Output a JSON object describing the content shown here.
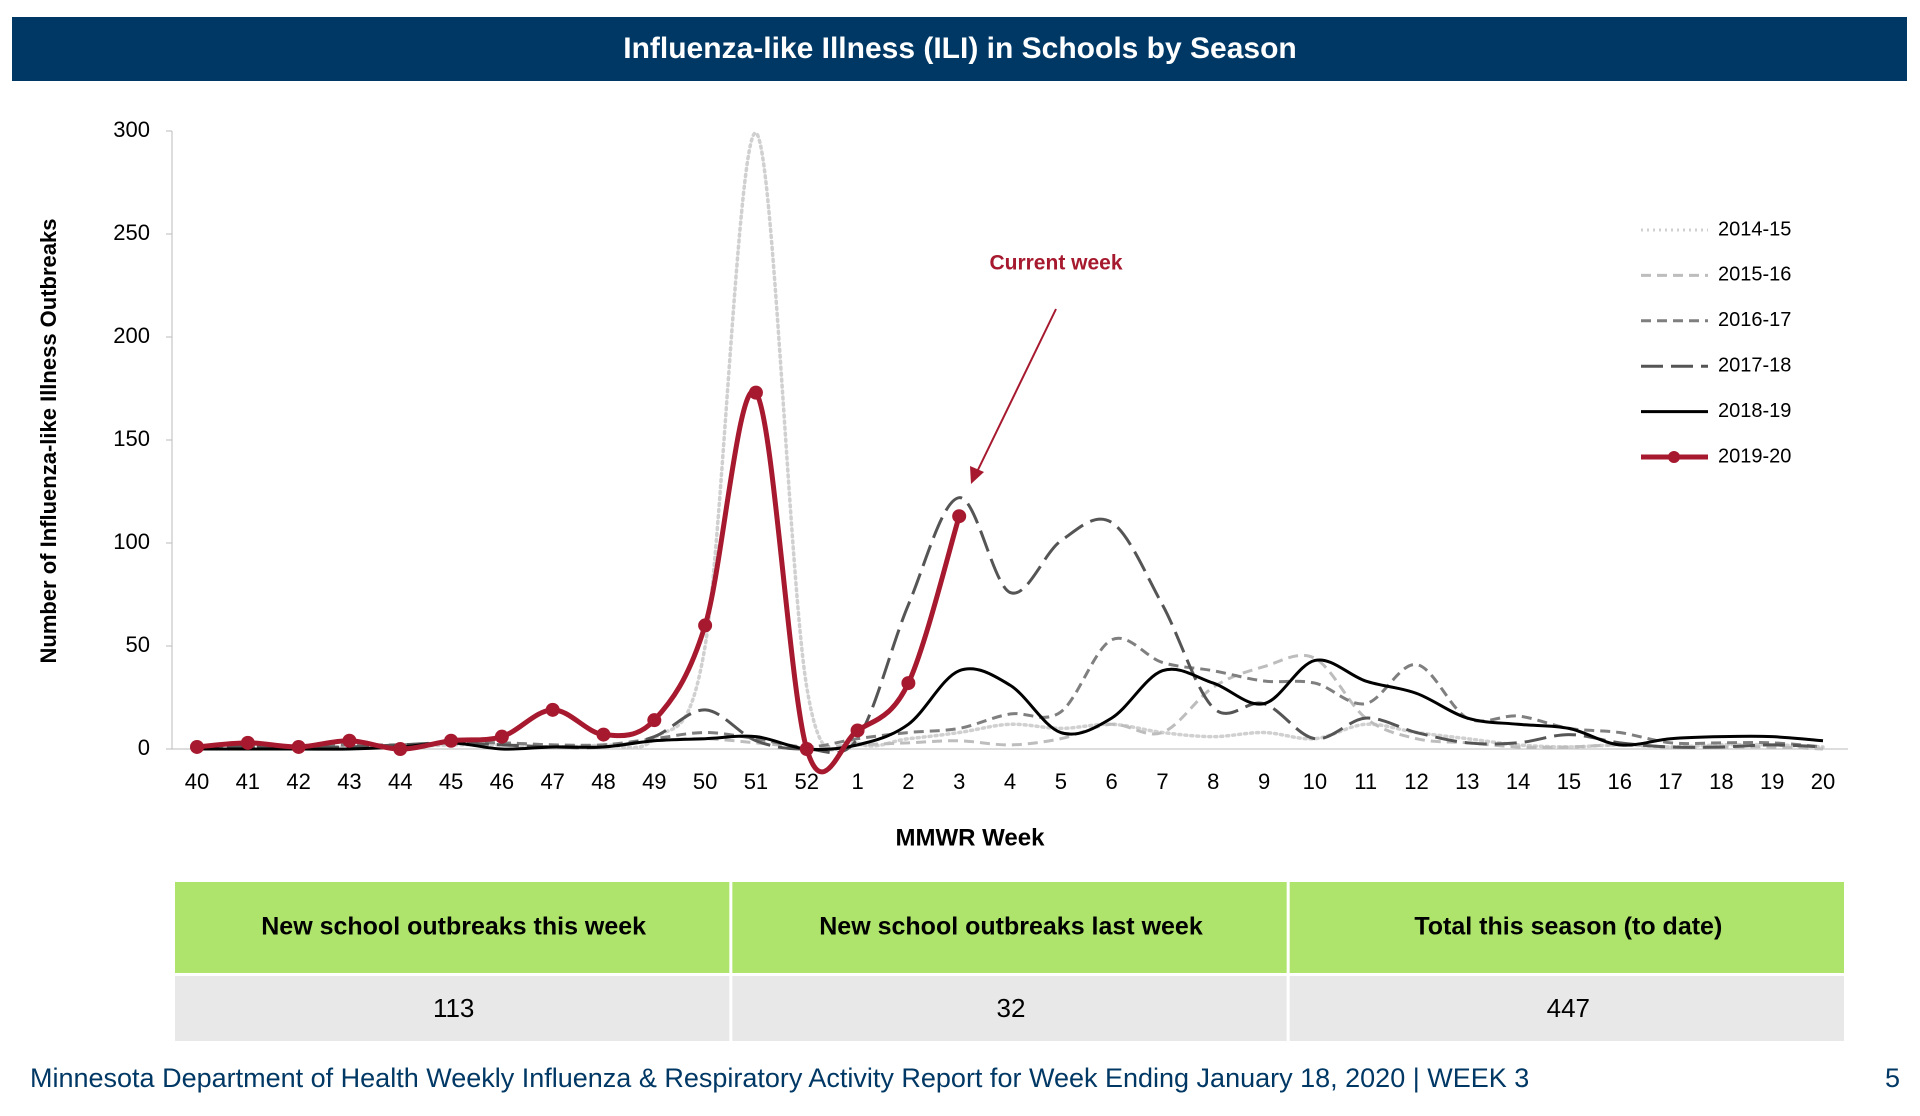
{
  "chart_data": {
    "type": "line",
    "title": "Influenza-like Illness (ILI) in Schools by Season",
    "x_label": "MMWR Week",
    "y_label": "Number of Influenza-like Illness Outbreaks",
    "annotation": "Current week",
    "categories": [
      "40",
      "41",
      "42",
      "43",
      "44",
      "45",
      "46",
      "47",
      "48",
      "49",
      "50",
      "51",
      "52",
      "1",
      "2",
      "3",
      "4",
      "5",
      "6",
      "7",
      "8",
      "9",
      "10",
      "11",
      "12",
      "13",
      "14",
      "15",
      "16",
      "17",
      "18",
      "19",
      "20"
    ],
    "ylim": [
      0,
      300
    ],
    "yticks": [
      0,
      50,
      100,
      150,
      200,
      250,
      300
    ],
    "legend": "right",
    "series": [
      {
        "name": "2014-15",
        "color": "#d0d0d0",
        "dash": "dotted",
        "values": [
          1,
          2,
          1,
          1,
          1,
          2,
          2,
          1,
          2,
          5,
          50,
          299,
          30,
          3,
          5,
          8,
          12,
          10,
          12,
          8,
          6,
          8,
          5,
          12,
          8,
          5,
          2,
          1,
          2,
          1,
          2,
          2,
          1
        ]
      },
      {
        "name": "2015-16",
        "color": "#bdbdbd",
        "dash": "dashed",
        "values": [
          1,
          2,
          1,
          2,
          2,
          3,
          3,
          2,
          2,
          4,
          5,
          3,
          1,
          2,
          3,
          4,
          2,
          5,
          12,
          8,
          30,
          40,
          44,
          15,
          5,
          3,
          1,
          1,
          2,
          1,
          1,
          1,
          0
        ]
      },
      {
        "name": "2016-17",
        "color": "#7f7f7f",
        "dash": "dashed",
        "values": [
          1,
          1,
          1,
          2,
          2,
          3,
          3,
          2,
          2,
          5,
          8,
          5,
          1,
          5,
          8,
          10,
          17,
          18,
          53,
          42,
          38,
          33,
          32,
          22,
          41,
          15,
          16,
          10,
          8,
          3,
          3,
          3,
          1
        ]
      },
      {
        "name": "2017-18",
        "color": "#555555",
        "dash": "longdash",
        "values": [
          1,
          1,
          1,
          1,
          2,
          3,
          2,
          1,
          1,
          6,
          19,
          4,
          0,
          5,
          70,
          122,
          76,
          101,
          110,
          70,
          20,
          22,
          5,
          15,
          8,
          3,
          3,
          7,
          3,
          1,
          1,
          2,
          1
        ]
      },
      {
        "name": "2018-19",
        "color": "#000000",
        "dash": "solid",
        "values": [
          0,
          0,
          0,
          0,
          1,
          3,
          0,
          1,
          1,
          4,
          5,
          6,
          0,
          2,
          12,
          38,
          31,
          8,
          15,
          38,
          32,
          22,
          43,
          33,
          27,
          15,
          12,
          10,
          2,
          5,
          6,
          6,
          4
        ]
      },
      {
        "name": "2019-20",
        "color": "#a6192e",
        "dash": "solid",
        "markers": true,
        "values": [
          1,
          3,
          1,
          4,
          0,
          4,
          6,
          19,
          7,
          14,
          60,
          173,
          0,
          9,
          32,
          113,
          null,
          null,
          null,
          null,
          null,
          null,
          null,
          null,
          null,
          null,
          null,
          null,
          null,
          null,
          null,
          null,
          null
        ]
      }
    ]
  },
  "table": {
    "header": [
      "New school outbreaks this week",
      "New school outbreaks last week",
      "Total this season (to date)"
    ],
    "rows": [
      [
        113,
        32,
        447
      ]
    ]
  },
  "footer": {
    "text": "Minnesota Department of Health Weekly Influenza & Respiratory Activity Report for Week Ending January 18, 2020 | WEEK 3",
    "page": "5"
  }
}
